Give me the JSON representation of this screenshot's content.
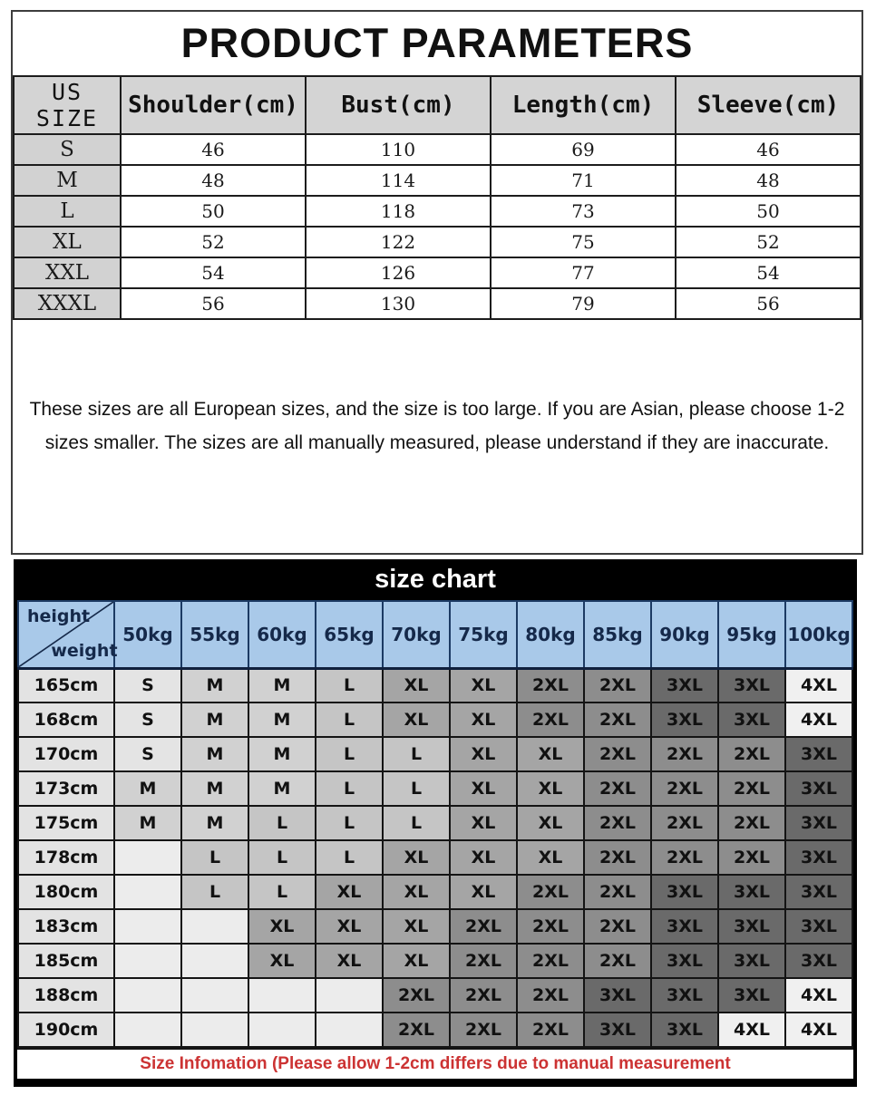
{
  "top": {
    "title": "PRODUCT PARAMETERS",
    "table": {
      "headers": [
        "US SIZE",
        "Shoulder(cm)",
        "Bust(cm)",
        "Length(cm)",
        "Sleeve(cm)"
      ],
      "rows": [
        {
          "size": "S",
          "values": [
            "46",
            "110",
            "69",
            "46"
          ]
        },
        {
          "size": "M",
          "values": [
            "48",
            "114",
            "71",
            "48"
          ]
        },
        {
          "size": "L",
          "values": [
            "50",
            "118",
            "73",
            "50"
          ]
        },
        {
          "size": "XL",
          "values": [
            "52",
            "122",
            "75",
            "52"
          ]
        },
        {
          "size": "XXL",
          "values": [
            "54",
            "126",
            "77",
            "54"
          ]
        },
        {
          "size": "XXXL",
          "values": [
            "56",
            "130",
            "79",
            "56"
          ]
        }
      ]
    },
    "note": "These sizes are all European sizes, and the size is too large. If you are Asian, please choose 1-2 sizes smaller. The sizes are all manually measured, please understand if they are inaccurate."
  },
  "chart": {
    "title": "size chart",
    "corner": {
      "top": "height",
      "bottom": "weight"
    },
    "weights": [
      "50kg",
      "55kg",
      "60kg",
      "65kg",
      "70kg",
      "75kg",
      "80kg",
      "85kg",
      "90kg",
      "95kg",
      "100kg"
    ],
    "rows": [
      {
        "height": "165cm",
        "sizes": [
          "S",
          "M",
          "M",
          "L",
          "XL",
          "XL",
          "2XL",
          "2XL",
          "3XL",
          "3XL",
          "4XL"
        ]
      },
      {
        "height": "168cm",
        "sizes": [
          "S",
          "M",
          "M",
          "L",
          "XL",
          "XL",
          "2XL",
          "2XL",
          "3XL",
          "3XL",
          "4XL"
        ]
      },
      {
        "height": "170cm",
        "sizes": [
          "S",
          "M",
          "M",
          "L",
          "L",
          "XL",
          "XL",
          "2XL",
          "2XL",
          "2XL",
          "3XL"
        ]
      },
      {
        "height": "173cm",
        "sizes": [
          "M",
          "M",
          "M",
          "L",
          "L",
          "XL",
          "XL",
          "2XL",
          "2XL",
          "2XL",
          "3XL"
        ]
      },
      {
        "height": "175cm",
        "sizes": [
          "M",
          "M",
          "L",
          "L",
          "L",
          "XL",
          "XL",
          "2XL",
          "2XL",
          "2XL",
          "3XL"
        ]
      },
      {
        "height": "178cm",
        "sizes": [
          "",
          "L",
          "L",
          "L",
          "XL",
          "XL",
          "XL",
          "2XL",
          "2XL",
          "2XL",
          "3XL"
        ]
      },
      {
        "height": "180cm",
        "sizes": [
          "",
          "L",
          "L",
          "XL",
          "XL",
          "XL",
          "2XL",
          "2XL",
          "3XL",
          "3XL",
          "3XL"
        ]
      },
      {
        "height": "183cm",
        "sizes": [
          "",
          "",
          "XL",
          "XL",
          "XL",
          "2XL",
          "2XL",
          "2XL",
          "3XL",
          "3XL",
          "3XL"
        ]
      },
      {
        "height": "185cm",
        "sizes": [
          "",
          "",
          "XL",
          "XL",
          "XL",
          "2XL",
          "2XL",
          "2XL",
          "3XL",
          "3XL",
          "3XL"
        ]
      },
      {
        "height": "188cm",
        "sizes": [
          "",
          "",
          "",
          "",
          "2XL",
          "2XL",
          "2XL",
          "3XL",
          "3XL",
          "3XL",
          "4XL"
        ]
      },
      {
        "height": "190cm",
        "sizes": [
          "",
          "",
          "",
          "",
          "2XL",
          "2XL",
          "2XL",
          "3XL",
          "3XL",
          "4XL",
          "4XL"
        ]
      }
    ],
    "footnote": "Size Infomation  (Please allow 1-2cm differs due to manual measurement",
    "colors": {
      "title_bar_bg": "#000000",
      "title_text": "#ffffff",
      "header_bg": "#a9c9e9",
      "header_text": "#15294a",
      "height_col_bg": "#e3e3e3",
      "empty_cell_bg": "#ececec",
      "footnote_text": "#cc3333",
      "size_cell_bg": {
        "S": "#e4e4e4",
        "M": "#d1d1d1",
        "L": "#c5c5c5",
        "XL": "#a5a5a5",
        "2XL": "#8d8d8d",
        "3XL": "#6a6a6a",
        "4XL": "#f0f0f0"
      }
    }
  }
}
